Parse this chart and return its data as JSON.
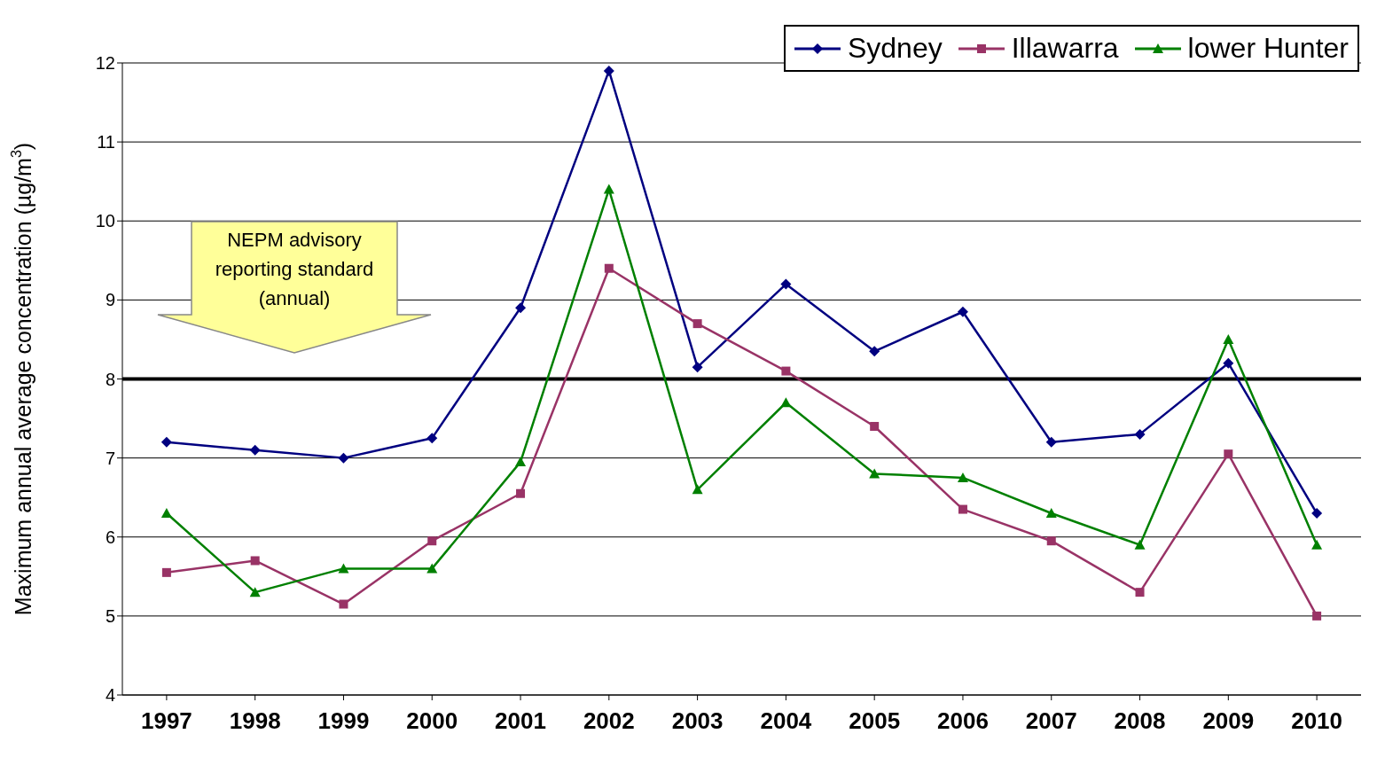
{
  "chart_data": {
    "type": "line",
    "ylabel": "Maximum annual average concentration (µg/m$^{3}$)",
    "categories": [
      "1997",
      "1998",
      "1999",
      "2000",
      "2001",
      "2002",
      "2003",
      "2004",
      "2005",
      "2006",
      "2007",
      "2008",
      "2009",
      "2010"
    ],
    "series": [
      {
        "name": "Sydney",
        "color": "#000080",
        "marker": "diamond",
        "values": [
          7.2,
          7.1,
          7.0,
          7.25,
          8.9,
          11.9,
          8.15,
          9.2,
          8.35,
          8.85,
          7.2,
          7.3,
          8.2,
          6.3
        ]
      },
      {
        "name": "Illawarra",
        "color": "#993366",
        "marker": "square",
        "values": [
          5.55,
          5.7,
          5.15,
          5.95,
          6.55,
          9.4,
          8.7,
          8.1,
          7.4,
          6.35,
          5.95,
          5.3,
          7.05,
          5.0
        ]
      },
      {
        "name": "lower Hunter",
        "color": "#008000",
        "marker": "triangle",
        "values": [
          6.3,
          5.3,
          5.6,
          5.6,
          6.95,
          10.4,
          6.6,
          7.7,
          6.8,
          6.75,
          6.3,
          5.9,
          8.5,
          5.9
        ]
      }
    ],
    "ylim": [
      4,
      12
    ],
    "yticks": [
      4,
      5,
      6,
      7,
      8,
      9,
      10,
      11,
      12
    ],
    "grid": "y",
    "legend": "top right",
    "ref_lines": [
      {
        "axis": "y",
        "value": 8,
        "color": "#000000"
      }
    ],
    "annotations": [
      "NEPM advisory reporting standard (annual)"
    ]
  }
}
